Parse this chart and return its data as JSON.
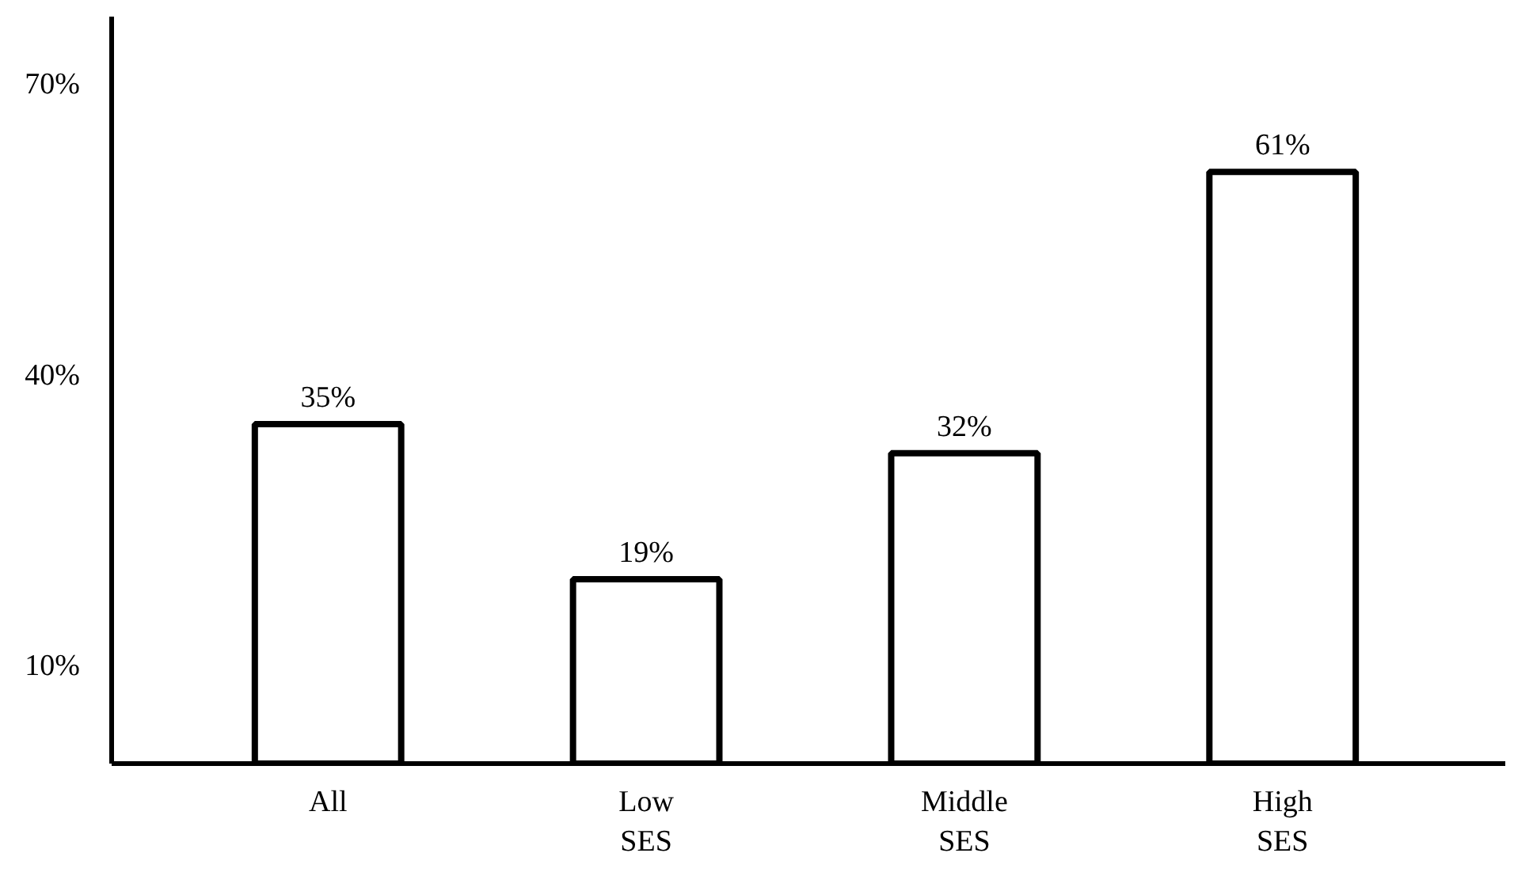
{
  "chart_data": {
    "type": "bar",
    "categories": [
      "All",
      "Low\nSES",
      "Middle\nSES",
      "High\nSES"
    ],
    "values": [
      35,
      19,
      32,
      61
    ],
    "color": "#ffffff",
    "data_labels": true,
    "value_labels": [
      "35%",
      "19%",
      "32%",
      "61%"
    ],
    "ylim": [
      0,
      77
    ],
    "yticks": [
      {
        "value": 10,
        "label": "10%"
      },
      {
        "value": 40,
        "label": "40%"
      },
      {
        "value": 70,
        "label": "70%"
      }
    ],
    "grid": false
  }
}
